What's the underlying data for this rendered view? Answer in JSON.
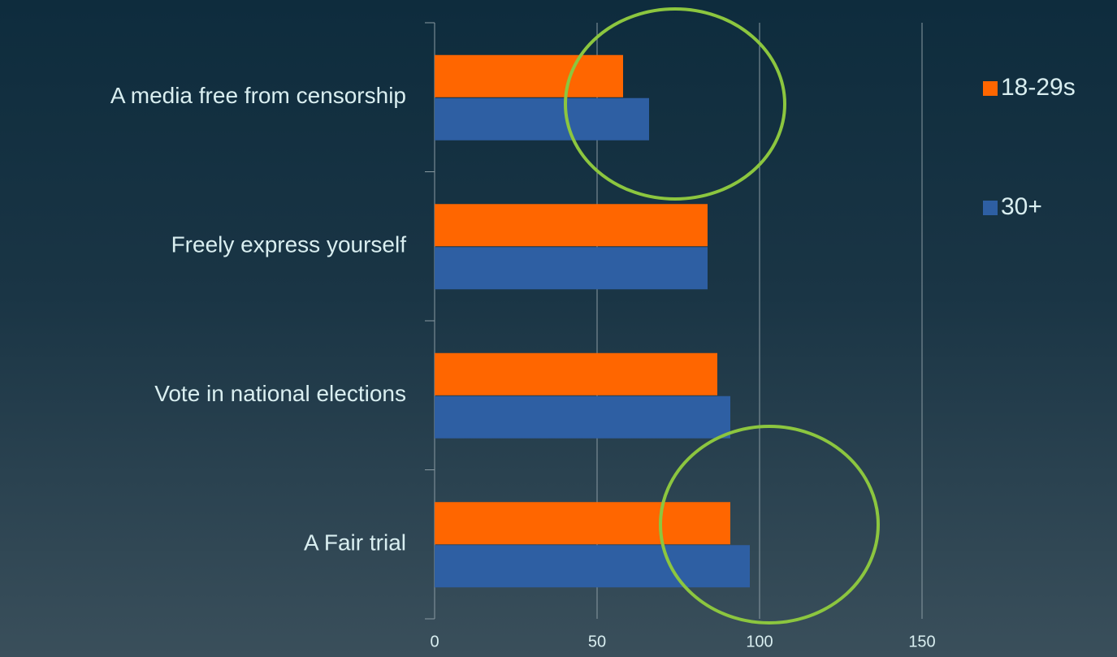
{
  "chart_data": {
    "type": "bar",
    "orientation": "horizontal",
    "categories": [
      "A media free from censorship",
      "Freely express yourself",
      "Vote in national elections",
      "A Fair trial"
    ],
    "series": [
      {
        "name": "18-29s",
        "color": "#ff6600",
        "values": [
          58,
          84,
          87,
          91
        ]
      },
      {
        "name": "30+",
        "color": "#2e5fa3",
        "values": [
          66,
          84,
          91,
          97
        ]
      }
    ],
    "xlim": [
      0,
      150
    ],
    "xticks": [
      0,
      50,
      100,
      150
    ],
    "grid": true,
    "legend": "right"
  }
}
